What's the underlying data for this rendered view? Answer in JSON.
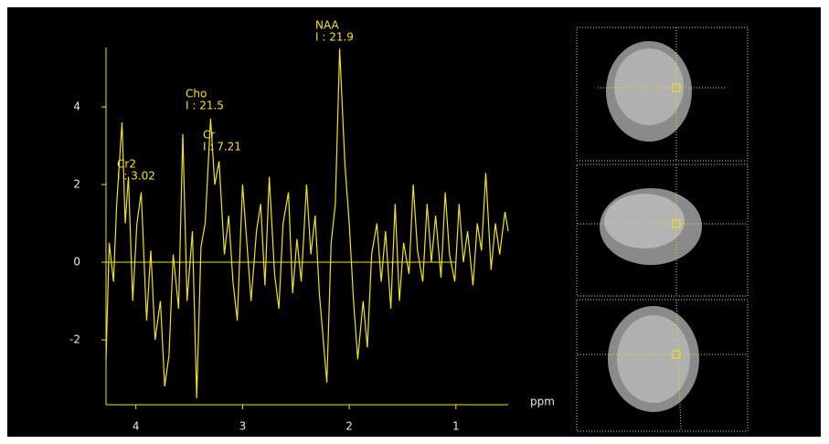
{
  "chart_data": {
    "type": "line",
    "color": "#f2e41c",
    "x_label": "ppm",
    "xlim": [
      4.28,
      0.51
    ],
    "ylim": [
      -3.67,
      5.53
    ],
    "xticks": [
      4,
      3,
      2,
      1
    ],
    "yticks": [
      4,
      2,
      0,
      -2
    ],
    "x": [
      4.28,
      4.25,
      4.21,
      4.18,
      4.13,
      4.1,
      4.07,
      4.03,
      3.99,
      3.95,
      3.9,
      3.86,
      3.82,
      3.77,
      3.73,
      3.69,
      3.65,
      3.6,
      3.56,
      3.52,
      3.47,
      3.43,
      3.39,
      3.35,
      3.3,
      3.26,
      3.22,
      3.17,
      3.13,
      3.09,
      3.05,
      3.0,
      2.96,
      2.92,
      2.87,
      2.83,
      2.79,
      2.75,
      2.7,
      2.66,
      2.62,
      2.57,
      2.53,
      2.49,
      2.45,
      2.4,
      2.36,
      2.32,
      2.28,
      2.21,
      2.17,
      2.13,
      2.09,
      2.04,
      2.0,
      1.96,
      1.92,
      1.87,
      1.83,
      1.79,
      1.74,
      1.7,
      1.66,
      1.61,
      1.57,
      1.53,
      1.49,
      1.44,
      1.4,
      1.36,
      1.31,
      1.27,
      1.23,
      1.19,
      1.14,
      1.1,
      1.06,
      1.01,
      0.97,
      0.93,
      0.89,
      0.84,
      0.8,
      0.76,
      0.72,
      0.67,
      0.63,
      0.59,
      0.54,
      0.51
    ],
    "values": [
      -2.5,
      0.5,
      -0.5,
      1.5,
      3.6,
      1.0,
      2.2,
      -1.0,
      1.0,
      1.8,
      -1.5,
      0.3,
      -2.0,
      -1.0,
      -3.2,
      -2.4,
      0.2,
      -1.2,
      3.3,
      -1.0,
      0.8,
      -3.5,
      0.4,
      1.0,
      3.7,
      2.0,
      2.6,
      0.2,
      1.2,
      -0.5,
      -1.5,
      2.0,
      0.5,
      -1.0,
      0.8,
      1.5,
      -0.6,
      2.2,
      -0.3,
      -1.2,
      1.0,
      1.8,
      -0.8,
      0.6,
      -0.5,
      2.0,
      0.2,
      1.2,
      -0.8,
      -3.1,
      0.5,
      1.5,
      5.5,
      2.5,
      1.0,
      -1.0,
      -2.5,
      -1.0,
      -2.2,
      0.2,
      1.0,
      -0.5,
      0.8,
      -1.2,
      1.5,
      -1.0,
      0.5,
      -0.3,
      2.0,
      0.3,
      -0.5,
      1.5,
      0.0,
      1.2,
      -0.4,
      1.8,
      0.2,
      -0.5,
      1.5,
      0.0,
      0.8,
      -0.6,
      1.0,
      0.3,
      2.3,
      -0.2,
      1.0,
      0.2,
      1.3,
      0.8
    ],
    "annotations": [
      {
        "label": "NAA",
        "text": "I : 21.9"
      },
      {
        "label": "Cho",
        "text": "I : 21.5"
      },
      {
        "label": "Cr",
        "text": "I : 7.21"
      },
      {
        "label": "Cr2",
        "text": "I : 3.02"
      }
    ]
  }
}
